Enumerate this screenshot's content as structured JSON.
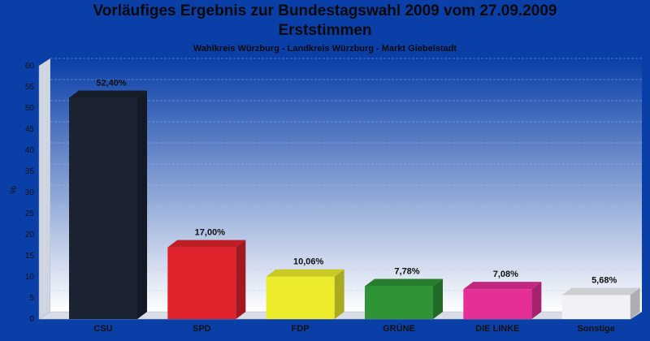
{
  "header": {
    "title_line1": "Vorläufiges Ergebnis zur Bundestagswahl 2009 vom 27.09.2009",
    "title_line2": "Erststimmen",
    "subtitle": "Wahlkreis Würzburg - Landkreis Würzburg - Markt Giebelstadt"
  },
  "chart_data": {
    "type": "bar",
    "title": "Vorläufiges Ergebnis zur Bundestagswahl 2009 vom 27.09.2009 Erststimmen",
    "subtitle": "Wahlkreis Würzburg - Landkreis Würzburg - Markt Giebelstadt",
    "xlabel": "",
    "ylabel": "%",
    "ylim": [
      0,
      60
    ],
    "yticks": [
      0,
      5,
      10,
      15,
      20,
      25,
      30,
      35,
      40,
      45,
      50,
      55,
      60
    ],
    "grid": true,
    "categories": [
      "CSU",
      "SPD",
      "FDP",
      "GRÜNE",
      "DIE LINKE",
      "Sonstige"
    ],
    "values": [
      52.4,
      17.0,
      10.06,
      7.78,
      7.08,
      5.68
    ],
    "value_labels": [
      "52,40%",
      "17,00%",
      "10,06%",
      "7,78%",
      "7,08%",
      "5,68%"
    ],
    "colors": [
      "#1b2333",
      "#e0232c",
      "#ecec2c",
      "#2e9436",
      "#e52f96",
      "#f2f2f6"
    ]
  }
}
